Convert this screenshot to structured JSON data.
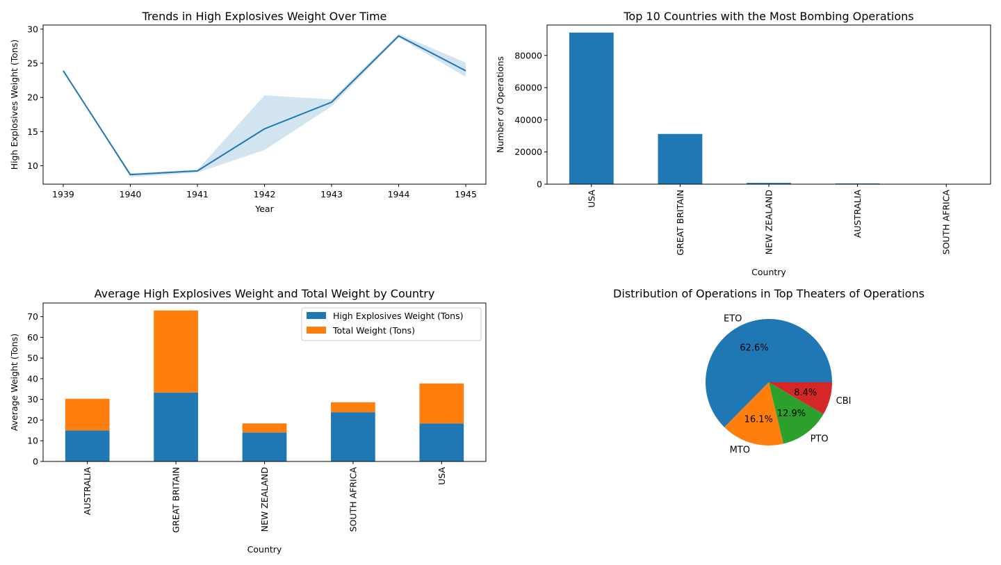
{
  "charts": [
    {
      "id": "line",
      "type": "line",
      "title": "Trends in High Explosives Weight Over Time",
      "xlabel": "Year",
      "ylabel": "High Explosives Weight (Tons)",
      "x": [
        1939,
        1940,
        1941,
        1942,
        1943,
        1944,
        1945
      ],
      "y": [
        23.9,
        8.7,
        9.25,
        15.4,
        19.3,
        29.0,
        23.9
      ],
      "ci_low": [
        23.9,
        8.35,
        9.0,
        12.3,
        18.7,
        28.8,
        23.0
      ],
      "ci_high": [
        23.9,
        8.9,
        9.4,
        20.3,
        19.7,
        29.3,
        25.1
      ],
      "xlim": [
        1938.7,
        1945.3
      ],
      "ylim": [
        7.3,
        30.6
      ],
      "xticks": [
        1939,
        1940,
        1941,
        1942,
        1943,
        1944,
        1945
      ],
      "yticks": [
        10,
        15,
        20,
        25,
        30
      ],
      "color": "#1f77b4"
    },
    {
      "id": "bar",
      "type": "bar",
      "title": "Top 10 Countries with the Most Bombing Operations",
      "xlabel": "Country",
      "ylabel": "Number of Operations",
      "categories": [
        "USA",
        "GREAT BRITAIN",
        "NEW ZEALAND",
        "AUSTRALIA",
        "SOUTH AFRICA"
      ],
      "values": [
        94200,
        31200,
        780,
        420,
        40
      ],
      "ylim": [
        0,
        98900
      ],
      "yticks": [
        0,
        20000,
        40000,
        60000,
        80000
      ],
      "color": "#1f77b4"
    },
    {
      "id": "stacked",
      "type": "bar",
      "title": "Average High Explosives Weight and Total Weight by Country",
      "xlabel": "Country",
      "ylabel": "Average Weight (Tons)",
      "categories": [
        "AUSTRALIA",
        "GREAT BRITAIN",
        "NEW ZEALAND",
        "SOUTH AFRICA",
        "USA"
      ],
      "series": [
        {
          "name": "High Explosives Weight (Tons)",
          "values": [
            15.0,
            33.3,
            14.0,
            23.8,
            18.4
          ],
          "color": "#1f77b4"
        },
        {
          "name": "Total Weight (Tons)",
          "values": [
            15.3,
            39.7,
            4.4,
            4.8,
            19.3
          ],
          "color": "#ff7f0e"
        }
      ],
      "ylim": [
        0,
        76.6
      ],
      "yticks": [
        0,
        10,
        20,
        30,
        40,
        50,
        60,
        70
      ],
      "legend": "top-right"
    },
    {
      "id": "pie",
      "type": "pie",
      "title": "Distribution of Operations in Top Theaters of Operations",
      "labels": [
        "ETO",
        "MTO",
        "PTO",
        "CBI"
      ],
      "values": [
        62.6,
        16.1,
        12.9,
        8.4
      ],
      "pct_labels": [
        "62.6%",
        "16.1%",
        "12.9%",
        "8.4%"
      ],
      "colors": [
        "#1f77b4",
        "#ff7f0e",
        "#2ca02c",
        "#d62728"
      ]
    }
  ]
}
